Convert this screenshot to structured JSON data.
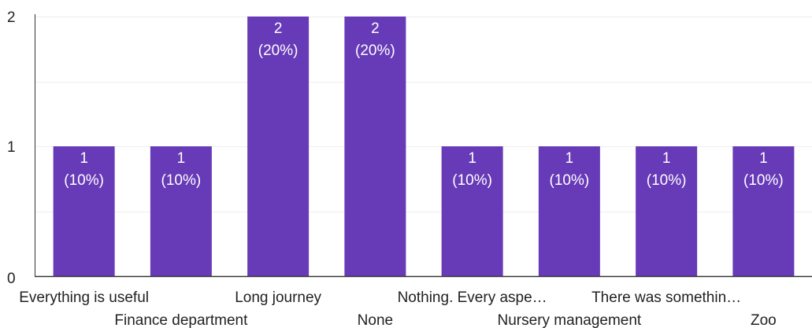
{
  "chart_data": {
    "type": "bar",
    "categories": [
      "Everything is useful",
      "Finance department",
      "Long journey",
      "None",
      "Nothing. Every aspe…",
      "Nursery management",
      "There was somethin…",
      "Zoo"
    ],
    "values": [
      1,
      1,
      2,
      2,
      1,
      1,
      1,
      1
    ],
    "value_labels": [
      [
        "1",
        "(10%)"
      ],
      [
        "1",
        "(10%)"
      ],
      [
        "2",
        "(20%)"
      ],
      [
        "2",
        "(20%)"
      ],
      [
        "1",
        "(10%)"
      ],
      [
        "1",
        "(10%)"
      ],
      [
        "1",
        "(10%)"
      ],
      [
        "1",
        "(10%)"
      ]
    ],
    "y_ticks": [
      "0",
      "1",
      "2"
    ],
    "ylim": [
      0,
      2
    ],
    "grid": true,
    "bar_color": "#673ab7",
    "grid_color": "#eeeeee",
    "axis_color": "#333333"
  }
}
